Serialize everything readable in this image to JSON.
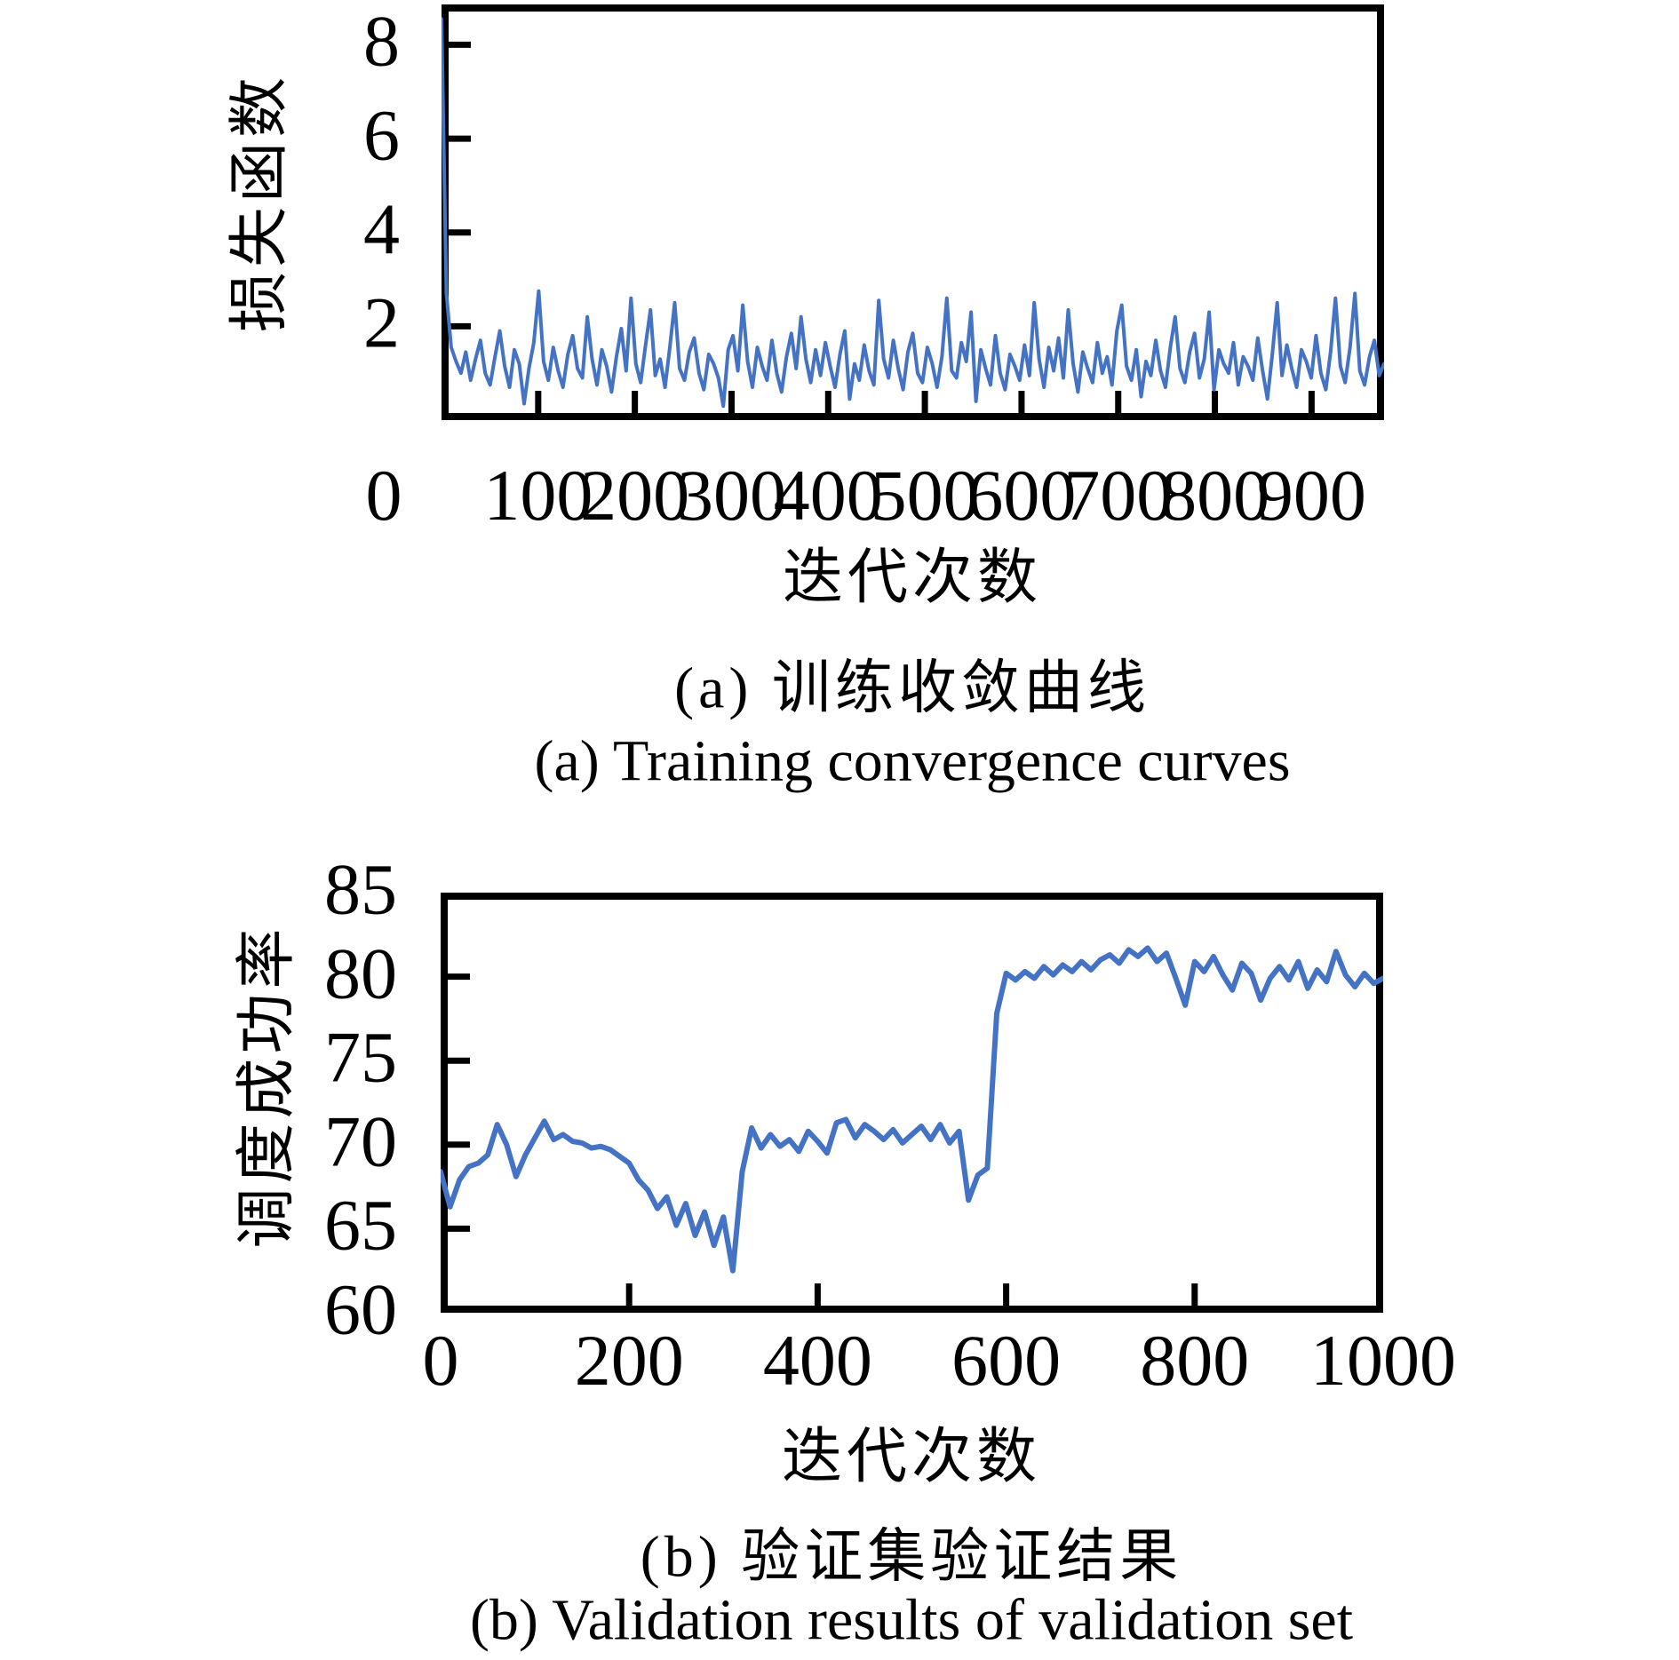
{
  "figure": {
    "background": "#ffffff",
    "axis_color": "#000000",
    "line_color": "#4472C4"
  },
  "captions": {
    "a_zh": "(a) 训练收敛曲线",
    "a_en": "(a) Training convergence curves",
    "b_zh": "(b) 验证集验证结果",
    "b_en": "(b) Validation results of validation set"
  },
  "chart_data": [
    {
      "type": "line",
      "title": "",
      "x_label": "迭代次数",
      "y_label": "损失函数",
      "x_range": [
        0,
        975
      ],
      "y_range": [
        0,
        8.86
      ],
      "grid": false,
      "legend": "none",
      "line_color": "#4472C4",
      "line_width": 4,
      "x_ticks": [
        100,
        200,
        300,
        400,
        500,
        600,
        700,
        800,
        900
      ],
      "x_tick_labels": [
        "0",
        "100",
        "200",
        "300",
        "400",
        "500",
        "600",
        "700",
        "800",
        "900"
      ],
      "x_tick_label_positions": [
        0,
        100,
        200,
        300,
        400,
        500,
        600,
        700,
        800,
        900
      ],
      "x_tick_label_offsets": {
        "0": -65
      },
      "y_ticks": [
        2,
        4,
        6,
        8
      ],
      "y_tick_labels": [
        "2",
        "4",
        "6",
        "8"
      ],
      "y_tick_label_positions": [
        2,
        4,
        6,
        8
      ],
      "values": [
        8.55,
        2.7,
        1.55,
        1.25,
        1.0,
        1.45,
        0.85,
        1.3,
        1.7,
        1.0,
        0.75,
        1.35,
        1.9,
        1.15,
        0.7,
        1.5,
        1.2,
        0.35,
        1.1,
        1.65,
        2.75,
        1.25,
        0.85,
        1.55,
        1.05,
        0.7,
        1.4,
        1.8,
        1.1,
        0.9,
        2.2,
        1.3,
        0.75,
        1.5,
        1.15,
        0.6,
        1.35,
        1.95,
        1.05,
        2.6,
        1.2,
        0.8,
        1.6,
        2.35,
        0.95,
        1.3,
        0.7,
        1.55,
        2.5,
        1.1,
        0.85,
        1.45,
        1.75,
        1.0,
        0.65,
        1.4,
        1.2,
        0.9,
        0.3,
        1.5,
        1.8,
        1.05,
        2.45,
        1.25,
        0.7,
        1.55,
        1.15,
        0.85,
        1.7,
        1.0,
        0.6,
        1.35,
        1.85,
        1.1,
        2.2,
        1.3,
        0.8,
        1.5,
        0.95,
        1.65,
        1.15,
        0.7,
        1.4,
        1.9,
        0.45,
        1.2,
        0.85,
        1.6,
        1.05,
        0.75,
        2.55,
        1.3,
        0.9,
        1.7,
        1.1,
        0.65,
        1.45,
        1.85,
        1.0,
        0.8,
        1.55,
        1.2,
        0.7,
        1.35,
        2.6,
        1.05,
        0.9,
        1.65,
        1.25,
        2.3,
        0.4,
        1.5,
        1.1,
        0.75,
        1.8,
        1.0,
        0.65,
        1.4,
        1.15,
        0.85,
        1.6,
        0.95,
        2.5,
        1.3,
        0.7,
        1.55,
        1.05,
        1.75,
        0.9,
        2.35,
        1.2,
        0.6,
        1.45,
        1.1,
        0.8,
        1.65,
        1.0,
        1.35,
        0.75,
        1.9,
        2.45,
        1.15,
        0.85,
        1.5,
        0.5,
        1.25,
        0.95,
        1.7,
        1.05,
        0.7,
        1.55,
        2.2,
        1.1,
        0.8,
        1.45,
        1.85,
        0.9,
        1.3,
        2.3,
        0.65,
        1.5,
        1.2,
        1.0,
        1.65,
        0.75,
        1.35,
        1.15,
        0.85,
        1.75,
        1.05,
        0.45,
        1.4,
        2.5,
        0.95,
        1.6,
        1.1,
        0.7,
        1.5,
        1.25,
        0.9,
        1.8,
        1.0,
        0.65,
        1.45,
        2.6,
        1.15,
        0.8,
        1.55,
        2.7,
        1.05,
        0.75,
        1.35,
        1.7,
        0.95,
        1.2
      ]
    },
    {
      "type": "line",
      "title": "",
      "x_label": "迭代次数",
      "y_label": "调度成功率",
      "x_range": [
        0,
        1000
      ],
      "y_range": [
        60,
        85
      ],
      "grid": false,
      "legend": "none",
      "line_color": "#4472C4",
      "line_width": 6,
      "x_ticks": [
        200,
        400,
        600,
        800
      ],
      "x_tick_labels": [
        "0",
        "200",
        "400",
        "600",
        "800",
        "1000"
      ],
      "x_tick_label_positions": [
        0,
        200,
        400,
        600,
        800,
        1000
      ],
      "x_tick_label_offsets": {},
      "y_ticks": [
        65,
        70,
        75,
        80
      ],
      "y_tick_labels": [
        "60",
        "65",
        "70",
        "75",
        "80",
        "85"
      ],
      "y_tick_label_positions": [
        60,
        65,
        70,
        75,
        80,
        85
      ],
      "values": [
        68.4,
        66.3,
        67.9,
        68.7,
        68.9,
        69.4,
        71.2,
        70.0,
        68.1,
        69.4,
        70.4,
        71.4,
        70.3,
        70.6,
        70.2,
        70.1,
        69.8,
        69.9,
        69.7,
        69.3,
        68.9,
        67.9,
        67.3,
        66.2,
        66.9,
        65.2,
        66.5,
        64.6,
        66.0,
        64.0,
        65.7,
        62.5,
        68.4,
        71.0,
        69.8,
        70.6,
        69.9,
        70.3,
        69.6,
        70.8,
        70.2,
        69.5,
        71.3,
        71.5,
        70.4,
        71.2,
        70.8,
        70.3,
        70.9,
        70.1,
        70.6,
        71.1,
        70.3,
        71.2,
        70.1,
        70.8,
        66.7,
        68.2,
        68.6,
        77.8,
        80.2,
        79.8,
        80.3,
        79.9,
        80.6,
        80.1,
        80.7,
        80.3,
        80.9,
        80.4,
        81.0,
        81.3,
        80.8,
        81.6,
        81.2,
        81.7,
        80.9,
        81.4,
        79.9,
        78.3,
        80.9,
        80.3,
        81.2,
        80.1,
        79.2,
        80.8,
        80.2,
        78.6,
        79.9,
        80.6,
        79.8,
        80.9,
        79.3,
        80.4,
        79.7,
        81.5,
        80.1,
        79.4,
        80.2,
        79.6,
        79.9
      ]
    }
  ]
}
